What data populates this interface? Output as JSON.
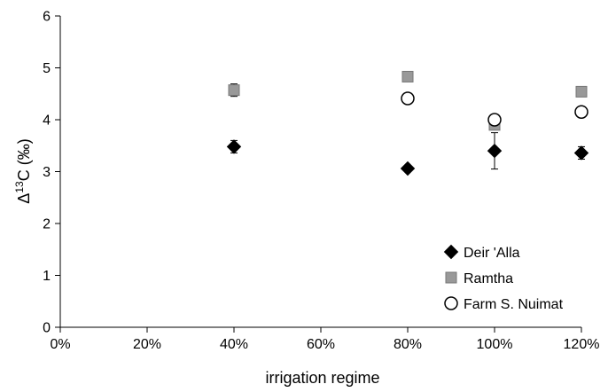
{
  "chart_data": {
    "type": "scatter",
    "xlabel": "irrigation regime",
    "ylabel_main": "Δ",
    "ylabel_sup": "13",
    "ylabel_rest": "C (‰)",
    "xlim": [
      0,
      120
    ],
    "ylim": [
      0,
      6
    ],
    "x_ticks": [
      "0%",
      "20%",
      "40%",
      "60%",
      "80%",
      "100%",
      "120%"
    ],
    "y_ticks": [
      "0",
      "1",
      "2",
      "3",
      "4",
      "5",
      "6"
    ],
    "grid": false,
    "legend_position": "bottom-right",
    "series": [
      {
        "name": "Deir 'Alla",
        "marker": "diamond",
        "color": "#000000",
        "points": [
          {
            "x": 40,
            "y": 3.48,
            "err": 0.12
          },
          {
            "x": 80,
            "y": 3.06,
            "err": 0
          },
          {
            "x": 100,
            "y": 3.4,
            "err": 0.35
          },
          {
            "x": 120,
            "y": 3.36,
            "err": 0.12
          }
        ]
      },
      {
        "name": "Ramtha",
        "marker": "square",
        "color": "#999999",
        "points": [
          {
            "x": 40,
            "y": 4.57,
            "err": 0.12
          },
          {
            "x": 80,
            "y": 4.83,
            "err": 0
          },
          {
            "x": 100,
            "y": 3.9,
            "err": 0
          },
          {
            "x": 120,
            "y": 4.54,
            "err": 0
          }
        ]
      },
      {
        "name": "Farm S. Nuimat",
        "marker": "circle",
        "color": "#000000",
        "points": [
          {
            "x": 80,
            "y": 4.41,
            "err": 0
          },
          {
            "x": 100,
            "y": 4.0,
            "err": 0
          },
          {
            "x": 120,
            "y": 4.15,
            "err": 0
          }
        ]
      }
    ]
  }
}
